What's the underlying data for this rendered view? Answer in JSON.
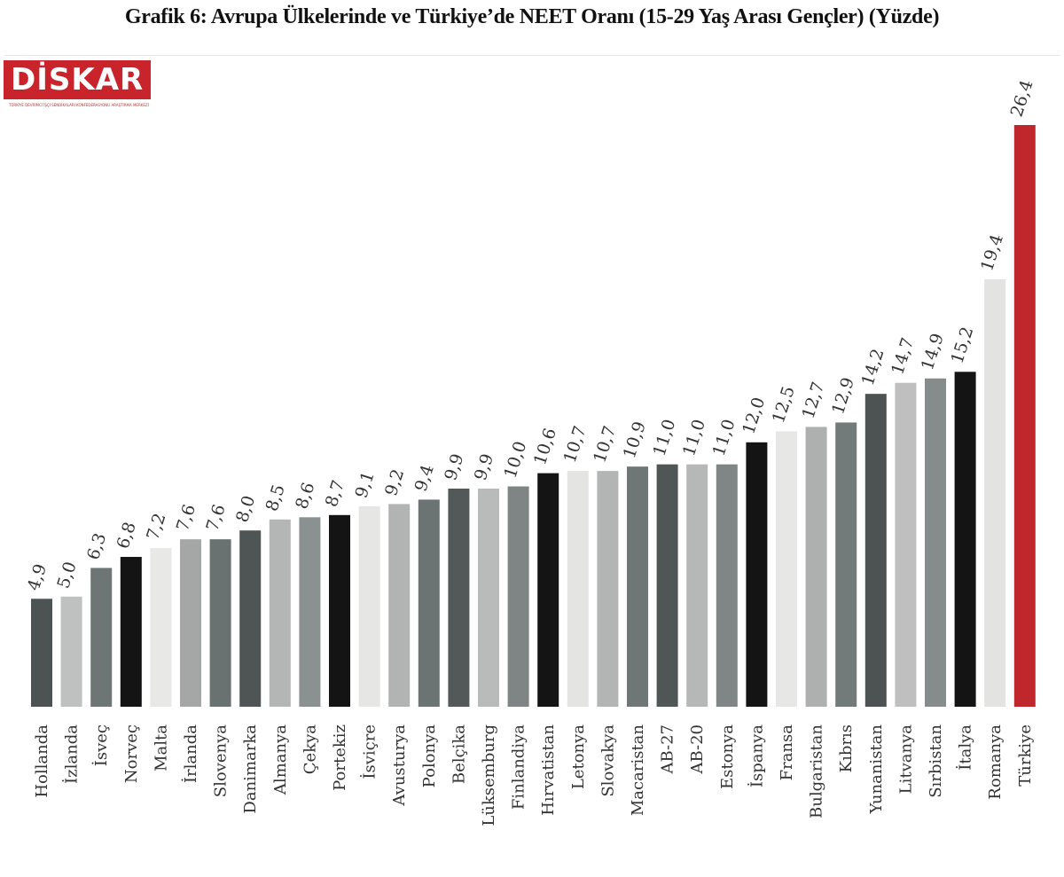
{
  "title": "Grafik 6: Avrupa Ülkelerinde ve Türkiye’de NEET Oranı (15-29 Yaş Arası Gençler) (Yüzde)",
  "logo": {
    "text": "DİSKAR",
    "tagline": "TÜRKİYE DEVRİMCİ İŞÇİ SENDİKALARI KONFEDERASYONU ARAŞTIRMA MERKEZİ"
  },
  "chart_data": {
    "type": "bar",
    "title": "Grafik 6: Avrupa Ülkelerinde ve Türkiye’de NEET Oranı (15-29 Yaş Arası Gençler) (Yüzde)",
    "xlabel": "",
    "ylabel": "",
    "ylim": [
      0,
      26.4
    ],
    "grid": false,
    "categories": [
      "Hollanda",
      "İzlanda",
      "İsveç",
      "Norveç",
      "Malta",
      "İrlanda",
      "Slovenya",
      "Danimarka",
      "Almanya",
      "Çekya",
      "Portekiz",
      "İsviçre",
      "Avusturya",
      "Polonya",
      "Belçika",
      "Lüksemburg",
      "Finlandiya",
      "Hırvatistan",
      "Letonya",
      "Slovakya",
      "Macaristan",
      "AB-27",
      "AB-20",
      "Estonya",
      "İspanya",
      "Fransa",
      "Bulgaristan",
      "Kıbrıs",
      "Yunanistan",
      "Litvanya",
      "Sırbistan",
      "İtalya",
      "Romanya",
      "Türkiye"
    ],
    "values": [
      4.9,
      5.0,
      6.3,
      6.8,
      7.2,
      7.6,
      7.6,
      8.0,
      8.5,
      8.6,
      8.7,
      9.1,
      9.2,
      9.4,
      9.9,
      9.9,
      10.0,
      10.6,
      10.7,
      10.7,
      10.9,
      11.0,
      11.0,
      11.0,
      12.0,
      12.5,
      12.7,
      12.9,
      14.2,
      14.7,
      14.9,
      15.2,
      19.4,
      26.4
    ],
    "labels": [
      "4,9",
      "5,0",
      "6,3",
      "6,8",
      "7,2",
      "7,6",
      "7,6",
      "8,0",
      "8,5",
      "8,6",
      "8,7",
      "9,1",
      "9,2",
      "9,4",
      "9,9",
      "9,9",
      "10,0",
      "10,6",
      "10,7",
      "10,7",
      "10,9",
      "11,0",
      "11,0",
      "11,0",
      "12,0",
      "12,5",
      "12,7",
      "12,9",
      "14,2",
      "14,7",
      "14,9",
      "15,2",
      "19,4",
      "26,4"
    ],
    "colors": [
      "#4d5352",
      "#bfc1c0",
      "#6e7675",
      "#141414",
      "#e8e8e6",
      "#a5a7a6",
      "#6a7271",
      "#4e5554",
      "#b4b6b5",
      "#8a9190",
      "#141414",
      "#e6e6e4",
      "#b2b4b3",
      "#6c7473",
      "#525958",
      "#b9bbba",
      "#7e8584",
      "#141414",
      "#e4e4e2",
      "#b3b5b4",
      "#6f7776",
      "#4f5655",
      "#b6b8b7",
      "#7f8685",
      "#141414",
      "#e7e7e5",
      "#aeb0af",
      "#737b7a",
      "#4c5352",
      "#bebfbe",
      "#858c8b",
      "#141414",
      "#e3e3e1",
      "#c0272d"
    ]
  }
}
